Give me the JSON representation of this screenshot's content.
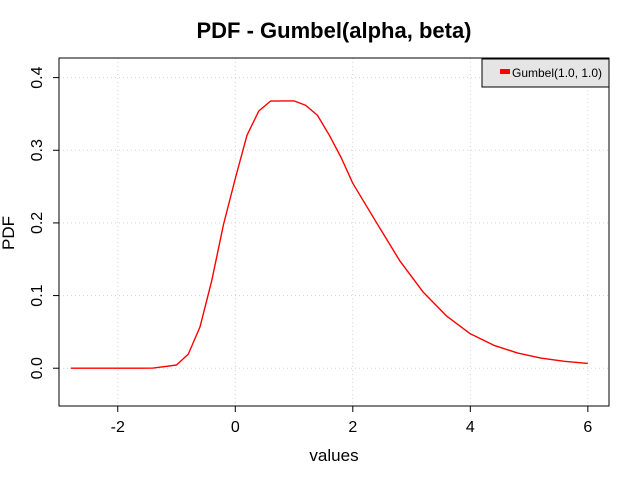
{
  "chart_data": {
    "type": "line",
    "title": "PDF - Gumbel(alpha, beta)",
    "xlabel": "values",
    "ylabel": "PDF",
    "xlim": [
      -3.0,
      6.36
    ],
    "ylim": [
      -0.052,
      0.427
    ],
    "x_ticks": [
      -2,
      0,
      2,
      4,
      6
    ],
    "x_tick_labels": [
      "-2",
      "0",
      "2",
      "4",
      "6"
    ],
    "y_ticks": [
      0.0,
      0.1,
      0.2,
      0.3,
      0.4
    ],
    "y_tick_labels": [
      "0.0",
      "0.1",
      "0.2",
      "0.3",
      "0.4"
    ],
    "grid": true,
    "legend_position": "top-right",
    "series": [
      {
        "name": "Gumbel(1.0, 1.0)",
        "color": "#ff0000",
        "x": [
          -2.8,
          -2.4,
          -2.0,
          -1.6,
          -1.4,
          -1.2,
          -1.0,
          -0.8,
          -0.6,
          -0.4,
          -0.2,
          0.0,
          0.2,
          0.4,
          0.6,
          0.8,
          1.0,
          1.2,
          1.4,
          1.6,
          1.8,
          2.0,
          2.4,
          2.8,
          3.2,
          3.6,
          4.0,
          4.4,
          4.8,
          5.2,
          5.6,
          6.0
        ],
        "y": [
          0.0,
          0.0,
          0.0,
          0.0,
          0.0002,
          0.0022,
          0.0045,
          0.0195,
          0.0569,
          0.1209,
          0.1978,
          0.2612,
          0.3207,
          0.3541,
          0.3677,
          0.3679,
          0.3679,
          0.3618,
          0.348,
          0.3207,
          0.2901,
          0.2546,
          0.2009,
          0.1479,
          0.1045,
          0.0716,
          0.0474,
          0.0315,
          0.0211,
          0.014,
          0.0095,
          0.0067
        ]
      }
    ]
  }
}
